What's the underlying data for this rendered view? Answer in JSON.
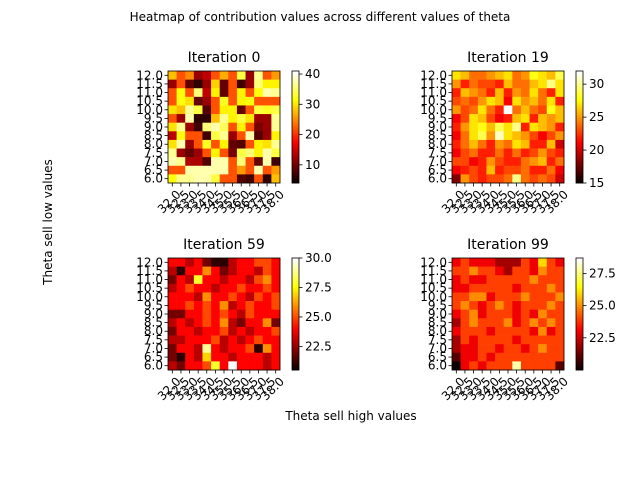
{
  "figure": {
    "suptitle": "Heatmap of contribution values across different values of theta",
    "xlabel": "Theta sell high values",
    "ylabel": "Theta sell low values"
  },
  "colormap": "hot",
  "chart_data": [
    {
      "type": "heatmap",
      "title": "Iteration 0",
      "y_ticks": [
        "12.0",
        "11.5",
        "11.0",
        "10.5",
        "10.0",
        "9.5",
        "9.0",
        "8.5",
        "8.0",
        "7.5",
        "7.0",
        "6.5",
        "6.0"
      ],
      "x_ticks": [
        "32.0",
        "32.5",
        "33.0",
        "33.5",
        "34.0",
        "34.5",
        "35.0",
        "35.5",
        "36.0",
        "36.5",
        "37.0",
        "37.5",
        "38.0"
      ],
      "colorbar_ticks": [
        10,
        20,
        30,
        40
      ],
      "vmin": 4,
      "vmax": 41,
      "values": [
        [
          28,
          22,
          25,
          12,
          14,
          22,
          27,
          22,
          34,
          12,
          37,
          22,
          26
        ],
        [
          12,
          22,
          9,
          6,
          12,
          29,
          9,
          22,
          7,
          12,
          36,
          31,
          31
        ],
        [
          22,
          32,
          22,
          36,
          14,
          31,
          9,
          22,
          31,
          22,
          32,
          38,
          37
        ],
        [
          22,
          32,
          30,
          9,
          12,
          22,
          33,
          22,
          31,
          32,
          22,
          22,
          22
        ],
        [
          30,
          28,
          37,
          34,
          8,
          22,
          31,
          31,
          9,
          22,
          34,
          33,
          34
        ],
        [
          22,
          12,
          38,
          6,
          6,
          28,
          37,
          31,
          34,
          30,
          12,
          12,
          37
        ],
        [
          30,
          37,
          12,
          7,
          36,
          38,
          35,
          22,
          31,
          22,
          10,
          12,
          37
        ],
        [
          14,
          32,
          22,
          22,
          7,
          34,
          37,
          12,
          22,
          38,
          8,
          12,
          31
        ],
        [
          30,
          38,
          12,
          22,
          33,
          22,
          31,
          9,
          8,
          22,
          31,
          30,
          37
        ],
        [
          37,
          12,
          9,
          12,
          22,
          31,
          22,
          10,
          34,
          36,
          31,
          38,
          34
        ],
        [
          38,
          37,
          13,
          13,
          8,
          38,
          38,
          22,
          36,
          22,
          9,
          38,
          7
        ],
        [
          22,
          22,
          38,
          38,
          38,
          38,
          38,
          22,
          26,
          22,
          38,
          22,
          26
        ],
        [
          32,
          37,
          37,
          38,
          38,
          34,
          22,
          22,
          8,
          7,
          22,
          6,
          28
        ]
      ]
    },
    {
      "type": "heatmap",
      "title": "Iteration 19",
      "y_ticks": [
        "12.0",
        "11.5",
        "11.0",
        "10.5",
        "10.0",
        "9.5",
        "9.0",
        "8.5",
        "8.0",
        "7.5",
        "7.0",
        "6.5",
        "6.0"
      ],
      "x_ticks": [
        "32.0",
        "32.5",
        "33.0",
        "33.5",
        "34.0",
        "34.5",
        "35.0",
        "35.5",
        "36.0",
        "36.5",
        "37.0",
        "37.5",
        "38.0"
      ],
      "colorbar_ticks": [
        15,
        20,
        25,
        30
      ],
      "vmin": 15,
      "vmax": 32,
      "values": [
        [
          27,
          26,
          24,
          24,
          25,
          26,
          27,
          24,
          25,
          28,
          27,
          26,
          29
        ],
        [
          25,
          22,
          24,
          23,
          23,
          22,
          26,
          24,
          24,
          26,
          27,
          30,
          27
        ],
        [
          22,
          26,
          25,
          24,
          22,
          26,
          22,
          25,
          24,
          27,
          24,
          22,
          27
        ],
        [
          23,
          24,
          23,
          25,
          27,
          26,
          21,
          27,
          25,
          26,
          24,
          27,
          22
        ],
        [
          25,
          23,
          24,
          27,
          24,
          22,
          32,
          24,
          26,
          24,
          23,
          28,
          26
        ],
        [
          21,
          23,
          27,
          26,
          23,
          21,
          22,
          26,
          27,
          22,
          26,
          25,
          26
        ],
        [
          22,
          25,
          27,
          28,
          26,
          29,
          27,
          30,
          22,
          27,
          26,
          25,
          22
        ],
        [
          21,
          24,
          27,
          29,
          25,
          31,
          27,
          26,
          25,
          23,
          21,
          23,
          25
        ],
        [
          22,
          24,
          26,
          24,
          22,
          25,
          24,
          27,
          26,
          22,
          22,
          26,
          20
        ],
        [
          21,
          23,
          24,
          22,
          22,
          24,
          22,
          24,
          22,
          23,
          25,
          23,
          22
        ],
        [
          23,
          23,
          21,
          22,
          25,
          23,
          22,
          22,
          24,
          25,
          26,
          22,
          24
        ],
        [
          21,
          22,
          23,
          22,
          26,
          22,
          23,
          23,
          24,
          22,
          22,
          24,
          21
        ],
        [
          18,
          25,
          23,
          22,
          23,
          23,
          24,
          30,
          24,
          23,
          24,
          23,
          20
        ]
      ]
    },
    {
      "type": "heatmap",
      "title": "Iteration 59",
      "y_ticks": [
        "12.0",
        "11.5",
        "11.0",
        "10.5",
        "10.0",
        "9.5",
        "9.0",
        "8.5",
        "8.0",
        "7.5",
        "7.0",
        "6.5",
        "6.0"
      ],
      "x_ticks": [
        "32.0",
        "32.5",
        "33.0",
        "33.5",
        "34.0",
        "34.5",
        "35.0",
        "35.5",
        "36.0",
        "36.5",
        "37.0",
        "37.5",
        "38.0"
      ],
      "colorbar_ticks": [
        22.5,
        25.0,
        27.5,
        30.0
      ],
      "colorbar_labels": [
        "22.5",
        "25.0",
        "27.5",
        "30.0"
      ],
      "vmin": 20.5,
      "vmax": 30,
      "values": [
        [
          24,
          24,
          23,
          24,
          22,
          21,
          21,
          23,
          24,
          24,
          25,
          25,
          24
        ],
        [
          23,
          21,
          24,
          24,
          26,
          24,
          22,
          23,
          24,
          24,
          23,
          25,
          24
        ],
        [
          22,
          24,
          23,
          28,
          24,
          24,
          23,
          24,
          24,
          23,
          25,
          26,
          24
        ],
        [
          23,
          24,
          25,
          24,
          24,
          23,
          24,
          24,
          25,
          24,
          24,
          25,
          24
        ],
        [
          24,
          24,
          24,
          23,
          26,
          24,
          24,
          25,
          24,
          23,
          25,
          24,
          25
        ],
        [
          24,
          24,
          25,
          24,
          25,
          24,
          26,
          23,
          24,
          25,
          24,
          24,
          25
        ],
        [
          22,
          22,
          24,
          24,
          25,
          24,
          25,
          24,
          23,
          25,
          24,
          24,
          24
        ],
        [
          23,
          24,
          23,
          24,
          25,
          24,
          26,
          23,
          22,
          24,
          24,
          26,
          22
        ],
        [
          22,
          24,
          24,
          23,
          24,
          24,
          25,
          23,
          24,
          23,
          24,
          24,
          25
        ],
        [
          23,
          23,
          24,
          24,
          24,
          25,
          23,
          24,
          23,
          24,
          25,
          24,
          24
        ],
        [
          22,
          24,
          24,
          23,
          29,
          24,
          23,
          24,
          24,
          25,
          21,
          26,
          24
        ],
        [
          22,
          21,
          24,
          23,
          27,
          24,
          24,
          23,
          24,
          24,
          24,
          23,
          24
        ],
        [
          23,
          22,
          24,
          24,
          25,
          28,
          24,
          30,
          24,
          24,
          24,
          23,
          24
        ]
      ]
    },
    {
      "type": "heatmap",
      "title": "Iteration 99",
      "y_ticks": [
        "12.0",
        "11.5",
        "11.0",
        "10.5",
        "10.0",
        "9.5",
        "9.0",
        "8.5",
        "8.0",
        "7.5",
        "7.0",
        "6.5",
        "6.0"
      ],
      "x_ticks": [
        "32.0",
        "32.5",
        "33.0",
        "33.5",
        "34.0",
        "34.5",
        "35.0",
        "35.5",
        "36.0",
        "36.5",
        "37.0",
        "37.5",
        "38.0"
      ],
      "colorbar_ticks": [
        22.5,
        25.0,
        27.5
      ],
      "colorbar_labels": [
        "22.5",
        "25.0",
        "27.5"
      ],
      "vmin": 20,
      "vmax": 28.7,
      "values": [
        [
          23,
          24,
          23,
          23,
          23,
          22,
          22,
          22,
          24,
          23,
          26,
          24,
          23
        ],
        [
          24,
          24,
          25,
          24,
          24,
          23,
          22,
          24,
          24,
          23,
          25,
          24,
          24
        ],
        [
          23,
          24,
          23,
          23,
          24,
          24,
          24,
          24,
          24,
          25,
          24,
          24,
          24
        ],
        [
          23,
          23,
          24,
          24,
          24,
          24,
          24,
          23,
          24,
          24,
          24,
          25,
          24
        ],
        [
          24,
          24,
          25,
          25,
          23,
          24,
          24,
          24,
          25,
          24,
          24,
          24,
          25
        ],
        [
          24,
          25,
          24,
          23,
          24,
          25,
          24,
          23,
          24,
          24,
          24,
          25,
          24
        ],
        [
          23,
          24,
          25,
          23,
          24,
          24,
          24,
          23,
          24,
          23,
          25,
          24,
          24
        ],
        [
          22,
          24,
          25,
          24,
          24,
          24,
          25,
          23,
          24,
          25,
          24,
          25,
          24
        ],
        [
          23,
          24,
          24,
          24,
          23,
          24,
          24,
          24,
          24,
          23,
          25,
          23,
          24
        ],
        [
          22,
          24,
          23,
          24,
          24,
          24,
          24,
          23,
          24,
          24,
          24,
          24,
          24
        ],
        [
          22,
          23,
          23,
          24,
          24,
          23,
          24,
          24,
          23,
          24,
          25,
          24,
          24
        ],
        [
          21,
          23,
          23,
          24,
          23,
          24,
          24,
          24,
          24,
          24,
          24,
          24,
          24
        ],
        [
          20,
          23,
          24,
          23,
          24,
          24,
          24,
          28,
          24,
          24,
          24,
          24,
          21
        ]
      ]
    }
  ]
}
